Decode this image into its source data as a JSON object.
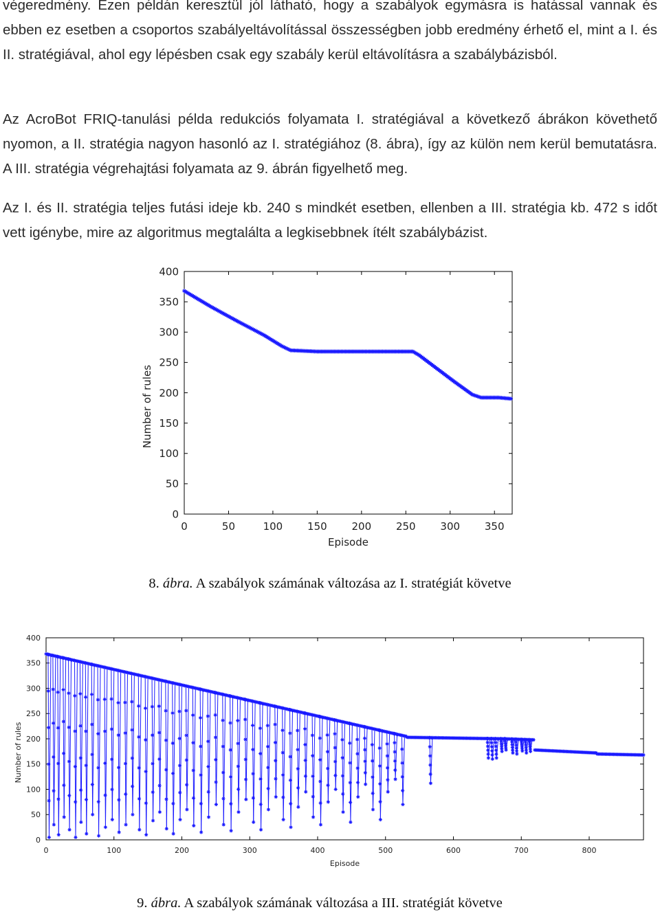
{
  "paragraphs": [
    "végeredmény. Ezen példán keresztül jól látható, hogy a szabályok egymásra is hatással vannak és ebben ez esetben a csoportos szabályeltávolítással összességben jobb eredmény érhető el, mint a I. és II. stratégiával, ahol egy lépésben csak egy szabály kerül eltávolításra a szabálybázisból.",
    "Az AcroBot FRIQ-tanulási példa redukciós folyamata I. stratégiával a következő ábrákon követhető nyomon, a II. stratégia nagyon hasonló az I. stratégiához (8. ábra), így az külön nem kerül bemutatásra. A III. stratégia végrehajtási folyamata az 9. ábrán figyelhető meg.",
    "Az I. és II. stratégia teljes futási ideje kb. 240 s mindkét esetben, ellenben a III. stratégia kb. 472 s időt vett igénybe, mire az algoritmus megtalálta a legkisebbnek ítélt szabálybázist."
  ],
  "figures": [
    {
      "number": "8.",
      "label": "ábra.",
      "caption": "A szabályok számának változása az I. stratégiát követve"
    },
    {
      "number": "9.",
      "label": "ábra.",
      "caption": "A szabályok számának változása a III. stratégiát követve"
    }
  ],
  "chart_data": [
    {
      "type": "line",
      "series_color": "#1a1aff",
      "marker": "asterisk",
      "xlabel": "Episode",
      "ylabel": "Number of rules",
      "xlim": [
        0,
        370
      ],
      "ylim": [
        0,
        400
      ],
      "xticks": [
        0,
        50,
        100,
        150,
        200,
        250,
        300,
        350
      ],
      "yticks": [
        0,
        50,
        100,
        150,
        200,
        250,
        300,
        350,
        400
      ],
      "grid": false,
      "series": [
        {
          "points": [
            [
              0,
              368
            ],
            [
              30,
              342
            ],
            [
              60,
              318
            ],
            [
              90,
              295
            ],
            [
              110,
              277
            ],
            [
              120,
              270
            ],
            [
              150,
              268
            ],
            [
              200,
              268
            ],
            [
              258,
              268
            ],
            [
              265,
              262
            ],
            [
              285,
              240
            ],
            [
              305,
              218
            ],
            [
              325,
              197
            ],
            [
              335,
              192
            ],
            [
              355,
              192
            ],
            [
              370,
              190
            ]
          ]
        }
      ]
    },
    {
      "type": "line",
      "series_color": "#1a1aff",
      "marker": "asterisk",
      "xlabel": "Episode",
      "ylabel": "Number of rules",
      "xlim": [
        0,
        880
      ],
      "ylim": [
        0,
        400
      ],
      "xticks": [
        0,
        100,
        200,
        300,
        400,
        500,
        600,
        700,
        800
      ],
      "yticks": [
        0,
        50,
        100,
        150,
        200,
        250,
        300,
        350,
        400
      ],
      "grid": false,
      "baseline_segments": [
        {
          "x0": 0,
          "x1": 530,
          "y0": 368,
          "y1": 205
        },
        {
          "x0": 530,
          "x1": 675,
          "y0": 203,
          "y1": 200
        },
        {
          "x0": 675,
          "x1": 718,
          "y0": 200,
          "y1": 198
        },
        {
          "x0": 718,
          "x1": 810,
          "y0": 178,
          "y1": 172
        },
        {
          "x0": 810,
          "x1": 880,
          "y0": 170,
          "y1": 168
        }
      ],
      "dips": [
        {
          "x": 3,
          "min": 5
        },
        {
          "x": 10,
          "min": 30
        },
        {
          "x": 17,
          "min": 10
        },
        {
          "x": 25,
          "min": 45
        },
        {
          "x": 33,
          "min": 20
        },
        {
          "x": 42,
          "min": 5
        },
        {
          "x": 50,
          "min": 35
        },
        {
          "x": 58,
          "min": 12
        },
        {
          "x": 67,
          "min": 50
        },
        {
          "x": 76,
          "min": 8
        },
        {
          "x": 86,
          "min": 25
        },
        {
          "x": 96,
          "min": 40
        },
        {
          "x": 106,
          "min": 15
        },
        {
          "x": 116,
          "min": 30
        },
        {
          "x": 126,
          "min": 50
        },
        {
          "x": 136,
          "min": 20
        },
        {
          "x": 146,
          "min": 10
        },
        {
          "x": 156,
          "min": 38
        },
        {
          "x": 166,
          "min": 55
        },
        {
          "x": 176,
          "min": 22
        },
        {
          "x": 186,
          "min": 12
        },
        {
          "x": 196,
          "min": 40
        },
        {
          "x": 206,
          "min": 60
        },
        {
          "x": 216,
          "min": 28
        },
        {
          "x": 227,
          "min": 15
        },
        {
          "x": 238,
          "min": 45
        },
        {
          "x": 249,
          "min": 70
        },
        {
          "x": 260,
          "min": 30
        },
        {
          "x": 271,
          "min": 18
        },
        {
          "x": 282,
          "min": 55
        },
        {
          "x": 293,
          "min": 80
        },
        {
          "x": 304,
          "min": 35
        },
        {
          "x": 315,
          "min": 20
        },
        {
          "x": 326,
          "min": 60
        },
        {
          "x": 337,
          "min": 85
        },
        {
          "x": 348,
          "min": 40
        },
        {
          "x": 359,
          "min": 25
        },
        {
          "x": 370,
          "min": 65
        },
        {
          "x": 381,
          "min": 95
        },
        {
          "x": 392,
          "min": 45
        },
        {
          "x": 403,
          "min": 30
        },
        {
          "x": 414,
          "min": 75
        },
        {
          "x": 425,
          "min": 100
        },
        {
          "x": 436,
          "min": 55
        },
        {
          "x": 447,
          "min": 35
        },
        {
          "x": 458,
          "min": 85
        },
        {
          "x": 469,
          "min": 110
        },
        {
          "x": 480,
          "min": 60
        },
        {
          "x": 491,
          "min": 40
        },
        {
          "x": 502,
          "min": 95
        },
        {
          "x": 513,
          "min": 120
        },
        {
          "x": 524,
          "min": 70
        },
        {
          "x": 565,
          "min": 112
        },
        {
          "x": 650,
          "min": 162
        },
        {
          "x": 656,
          "min": 160
        },
        {
          "x": 662,
          "min": 162
        },
        {
          "x": 670,
          "min": 175
        },
        {
          "x": 676,
          "min": 178
        },
        {
          "x": 686,
          "min": 172
        },
        {
          "x": 692,
          "min": 170
        },
        {
          "x": 700,
          "min": 176
        },
        {
          "x": 706,
          "min": 172
        },
        {
          "x": 712,
          "min": 175
        }
      ]
    }
  ]
}
